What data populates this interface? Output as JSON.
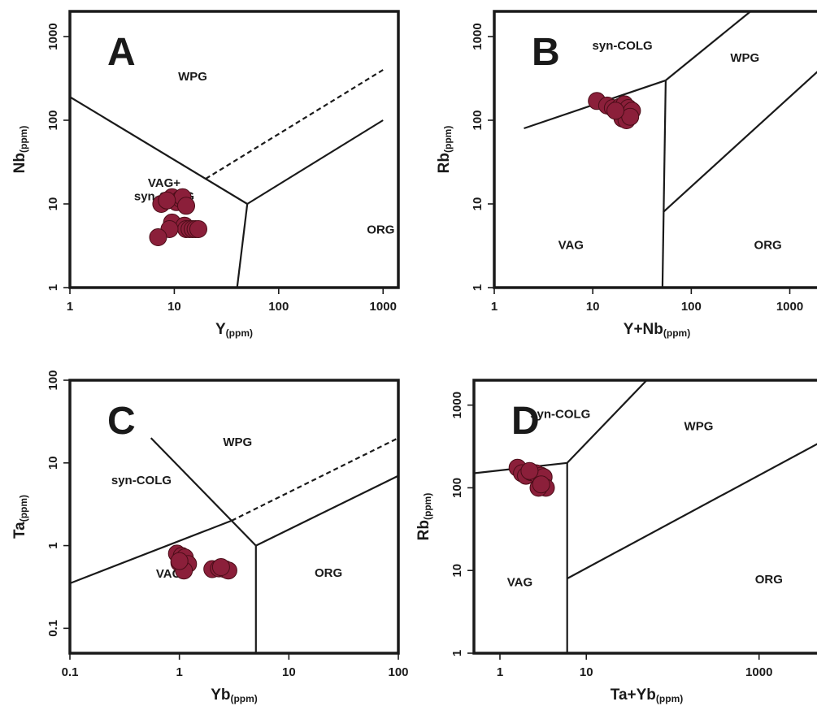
{
  "colors": {
    "frame": "#1a1a1a",
    "point_fill": "#8b1f3a",
    "point_stroke": "#4a0d18",
    "background": "#ffffff"
  },
  "chart_data": [
    {
      "type": "scatter",
      "letter": "A",
      "xscale": "log",
      "yscale": "log",
      "xlim": [
        1,
        1400
      ],
      "ylim": [
        1,
        2000
      ],
      "xticks": [
        1,
        10,
        100,
        1000
      ],
      "xtick_labels": [
        "1",
        "10",
        "100",
        "1000"
      ],
      "yticks": [
        1,
        10,
        100,
        1000
      ],
      "ytick_labels": [
        "1",
        "10",
        "100",
        "1000"
      ],
      "xlabel": "Y",
      "xlabel_unit": "(ppm)",
      "ylabel": "Nb",
      "ylabel_unit": "(ppm)",
      "regions": [
        {
          "label": "WPG",
          "x": 15,
          "y": 300
        },
        {
          "label": "VAG+",
          "x": 8,
          "y": 16
        },
        {
          "label": "syn-COLG",
          "x": 8,
          "y": 11
        },
        {
          "label": "ORG",
          "x": 950,
          "y": 4.4
        }
      ],
      "boundaries": [
        {
          "points": [
            [
              1,
              190
            ],
            [
              50,
              10
            ]
          ]
        },
        {
          "points": [
            [
              50,
              10
            ],
            [
              40,
              1
            ]
          ]
        },
        {
          "points": [
            [
              50,
              10
            ],
            [
              1000,
              100
            ]
          ]
        },
        {
          "points": [
            [
              20,
              20
            ],
            [
              1000,
              400
            ]
          ],
          "dashed": true
        }
      ],
      "series": [
        {
          "x": [
            7.5,
            8.5,
            9.5,
            10.5,
            11.5,
            12,
            13,
            8.5,
            9.5,
            12.5,
            13,
            14,
            15,
            16,
            17,
            9,
            7
          ],
          "y": [
            10,
            11,
            12,
            10.5,
            11.5,
            12,
            9.5,
            11,
            6,
            5.5,
            5,
            5,
            5,
            5,
            5,
            5,
            4
          ]
        }
      ]
    },
    {
      "type": "scatter",
      "letter": "B",
      "xscale": "log",
      "yscale": "log",
      "xlim": [
        1,
        2000
      ],
      "ylim": [
        1,
        2000
      ],
      "xticks": [
        1,
        10,
        100,
        1000
      ],
      "xtick_labels": [
        "1",
        "10",
        "100",
        "1000"
      ],
      "yticks": [
        1,
        10,
        100,
        1000
      ],
      "ytick_labels": [
        "1",
        "10",
        "100",
        "1000"
      ],
      "xlabel": "Y+Nb",
      "xlabel_unit": "(ppm)",
      "ylabel": "Rb",
      "ylabel_unit": "(ppm)",
      "regions": [
        {
          "label": "syn-COLG",
          "x": 20,
          "y": 700
        },
        {
          "label": "WPG",
          "x": 350,
          "y": 500
        },
        {
          "label": "VAG",
          "x": 6,
          "y": 2.9
        },
        {
          "label": "ORG",
          "x": 600,
          "y": 2.9
        }
      ],
      "boundaries": [
        {
          "points": [
            [
              2,
              80
            ],
            [
              55,
              300
            ]
          ]
        },
        {
          "points": [
            [
              55,
              300
            ],
            [
              400,
              2000
            ]
          ]
        },
        {
          "points": [
            [
              55,
              300
            ],
            [
              51,
              1
            ]
          ]
        },
        {
          "points": [
            [
              52,
              8
            ],
            [
              2000,
              400
            ]
          ]
        }
      ],
      "series": [
        {
          "x": [
            11,
            14,
            16,
            19,
            21,
            23,
            25,
            20,
            22,
            24,
            17
          ],
          "y": [
            170,
            150,
            140,
            145,
            155,
            140,
            130,
            105,
            100,
            110,
            130
          ]
        }
      ]
    },
    {
      "type": "scatter",
      "letter": "C",
      "xscale": "log",
      "yscale": "log",
      "xlim": [
        0.1,
        100
      ],
      "ylim": [
        0.05,
        100
      ],
      "xticks": [
        0.1,
        1,
        10,
        100
      ],
      "xtick_labels": [
        "0.1",
        "1",
        "10",
        "100"
      ],
      "yticks": [
        0.1,
        1,
        10,
        100
      ],
      "ytick_labels": [
        "0.1",
        "1",
        "10",
        "100"
      ],
      "xlabel": "Yb",
      "xlabel_unit": "(ppm)",
      "ylabel": "Ta",
      "ylabel_unit": "(ppm)",
      "regions": [
        {
          "label": "WPG",
          "x": 3.4,
          "y": 16
        },
        {
          "label": "syn-COLG",
          "x": 0.45,
          "y": 5.5
        },
        {
          "label": "VAG",
          "x": 0.8,
          "y": 0.41
        },
        {
          "label": "ORG",
          "x": 23,
          "y": 0.42
        }
      ],
      "boundaries": [
        {
          "points": [
            [
              0.1,
              0.35
            ],
            [
              3,
              2
            ]
          ]
        },
        {
          "points": [
            [
              0.55,
              20
            ],
            [
              5,
              1
            ]
          ]
        },
        {
          "points": [
            [
              5,
              1
            ],
            [
              5,
              0.05
            ]
          ]
        },
        {
          "points": [
            [
              5,
              1
            ],
            [
              100,
              7
            ]
          ]
        },
        {
          "points": [
            [
              3,
              2
            ],
            [
              100,
              20
            ]
          ],
          "dashed": true
        }
      ],
      "series": [
        {
          "x": [
            0.95,
            1.05,
            1.12,
            1.0,
            1.2,
            1.1,
            1.0,
            2.0,
            2.3,
            2.6,
            2.8,
            2.4
          ],
          "y": [
            0.8,
            0.75,
            0.72,
            0.62,
            0.6,
            0.5,
            0.65,
            0.52,
            0.53,
            0.52,
            0.5,
            0.55
          ]
        }
      ]
    },
    {
      "type": "scatter",
      "letter": "D",
      "xscale": "log",
      "yscale": "log",
      "xlim": [
        0.5,
        5000
      ],
      "ylim": [
        1,
        2000
      ],
      "xticks": [
        1,
        10,
        1000
      ],
      "xtick_labels": [
        "1",
        "10",
        "1000"
      ],
      "yticks": [
        1,
        10,
        100,
        1000
      ],
      "ytick_labels": [
        "1",
        "10",
        "100",
        "1000"
      ],
      "xlabel": "Ta+Yb",
      "xlabel_unit": "(ppm)",
      "ylabel": "Rb",
      "ylabel_unit": "(ppm)",
      "regions": [
        {
          "label": "syn-COLG",
          "x": 5,
          "y": 700
        },
        {
          "label": "WPG",
          "x": 200,
          "y": 500
        },
        {
          "label": "VAG",
          "x": 1.7,
          "y": 6.5
        },
        {
          "label": "ORG",
          "x": 1300,
          "y": 7
        }
      ],
      "boundaries": [
        {
          "points": [
            [
              0.5,
              150
            ],
            [
              6,
              200
            ]
          ]
        },
        {
          "points": [
            [
              6,
              200
            ],
            [
              6,
              1
            ]
          ]
        },
        {
          "points": [
            [
              6,
              200
            ],
            [
              50,
              2000
            ]
          ]
        },
        {
          "points": [
            [
              6,
              8
            ],
            [
              5000,
              350
            ]
          ]
        }
      ],
      "series": [
        {
          "x": [
            1.6,
            1.8,
            2.0,
            2.3,
            2.6,
            3.0,
            3.2,
            3.4,
            2.8,
            3.0,
            2.2
          ],
          "y": [
            175,
            150,
            140,
            155,
            150,
            140,
            135,
            100,
            100,
            110,
            160
          ]
        }
      ]
    }
  ]
}
